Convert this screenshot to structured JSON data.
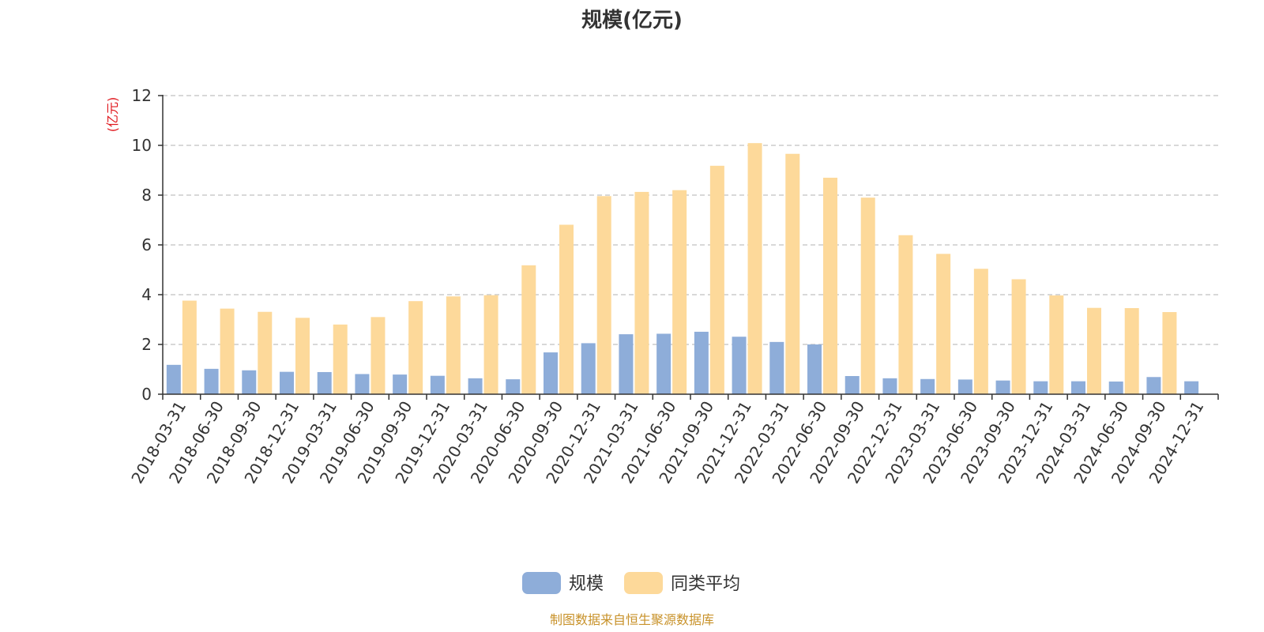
{
  "chart_data": {
    "type": "bar",
    "title": "规模(亿元)",
    "ylabel": "(亿元)",
    "ylim": [
      0,
      12
    ],
    "yticks": [
      0,
      2,
      4,
      6,
      8,
      10,
      12
    ],
    "grid": true,
    "legend_position": "bottom",
    "categories": [
      "2018-03-31",
      "2018-06-30",
      "2018-09-30",
      "2018-12-31",
      "2019-03-31",
      "2019-06-30",
      "2019-09-30",
      "2019-12-31",
      "2020-03-31",
      "2020-06-30",
      "2020-09-30",
      "2020-12-31",
      "2021-03-31",
      "2021-06-30",
      "2021-09-30",
      "2021-12-31",
      "2022-03-31",
      "2022-06-30",
      "2022-09-30",
      "2022-12-31",
      "2023-03-31",
      "2023-06-30",
      "2023-09-30",
      "2023-12-31",
      "2024-03-31",
      "2024-06-30",
      "2024-09-30",
      "2024-12-31"
    ],
    "series": [
      {
        "name": "规模",
        "color": "#8eadd9",
        "values": [
          1.18,
          1.02,
          0.96,
          0.9,
          0.89,
          0.81,
          0.79,
          0.74,
          0.64,
          0.6,
          1.68,
          2.05,
          2.41,
          2.43,
          2.51,
          2.31,
          2.1,
          2.0,
          0.73,
          0.64,
          0.61,
          0.59,
          0.55,
          0.52,
          0.52,
          0.51,
          0.69,
          0.52
        ]
      },
      {
        "name": "同类平均",
        "color": "#fdd99a",
        "values": [
          3.76,
          3.44,
          3.31,
          3.07,
          2.8,
          3.1,
          3.74,
          3.93,
          3.98,
          5.18,
          6.81,
          7.96,
          8.13,
          8.2,
          9.18,
          10.09,
          9.66,
          8.7,
          7.9,
          6.39,
          5.64,
          5.04,
          4.62,
          3.97,
          3.47,
          3.46,
          3.3,
          null
        ]
      }
    ]
  },
  "colors": {
    "unit_label": "#e0191f",
    "source": "#c8922a",
    "grid": "#cccccc",
    "axis": "#333333"
  },
  "source_text": "制图数据来自恒生聚源数据库"
}
